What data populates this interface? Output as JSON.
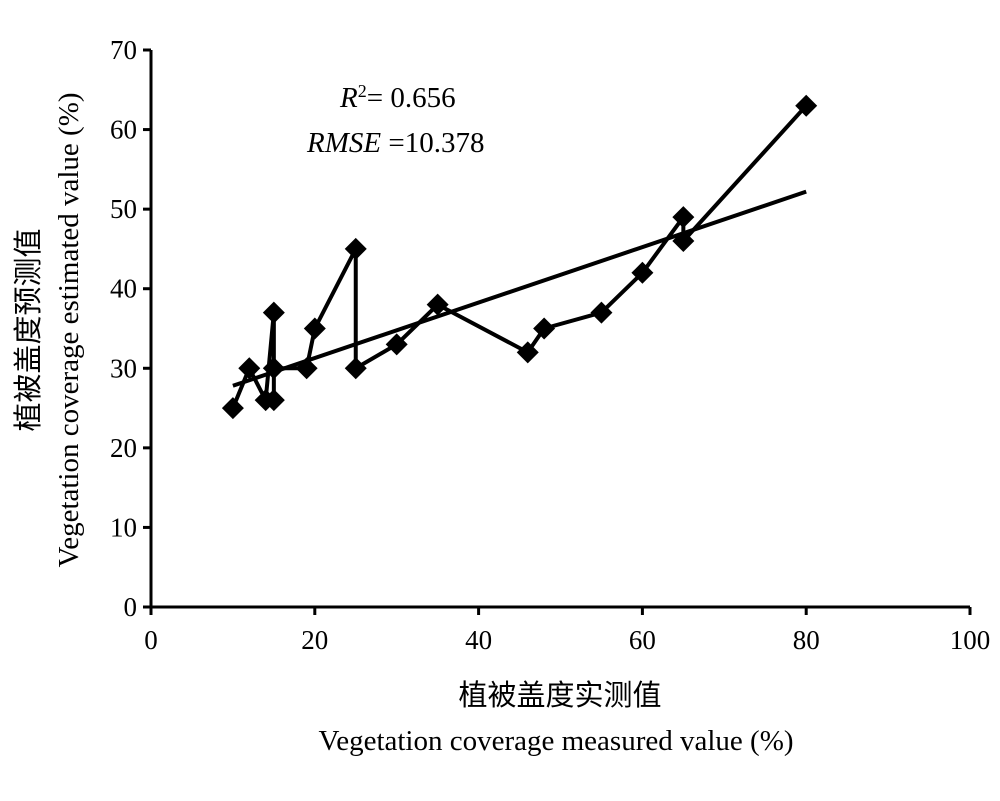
{
  "chart_data": {
    "type": "scatter",
    "xlabel_cn": "植被盖度实测值",
    "xlabel": "Vegetation coverage measured value (%)",
    "ylabel_cn": "植被盖度预测值",
    "ylabel": "Vegetation coverage estimated value (%)",
    "xlim": [
      0,
      100
    ],
    "ylim": [
      0,
      70
    ],
    "xticks": [
      0,
      20,
      40,
      60,
      80,
      100
    ],
    "yticks": [
      0,
      10,
      20,
      30,
      40,
      50,
      60,
      70
    ],
    "grid": false,
    "annotations": {
      "r2_symbol": "R",
      "r2_sup": "2",
      "r2_value": "= 0.656",
      "rmse_symbol": "RMSE",
      "rmse_value": " =10.378"
    },
    "series": [
      {
        "marker": "diamond",
        "connected": true,
        "points": [
          {
            "x": 10,
            "y": 25
          },
          {
            "x": 12,
            "y": 30
          },
          {
            "x": 14,
            "y": 26
          },
          {
            "x": 15,
            "y": 37
          },
          {
            "x": 15,
            "y": 26
          },
          {
            "x": 15,
            "y": 30
          },
          {
            "x": 19,
            "y": 30
          },
          {
            "x": 20,
            "y": 35
          },
          {
            "x": 25,
            "y": 45
          },
          {
            "x": 25,
            "y": 30
          },
          {
            "x": 30,
            "y": 33
          },
          {
            "x": 35,
            "y": 38
          },
          {
            "x": 46,
            "y": 32
          },
          {
            "x": 48,
            "y": 35
          },
          {
            "x": 55,
            "y": 37
          },
          {
            "x": 60,
            "y": 42
          },
          {
            "x": 65,
            "y": 49
          },
          {
            "x": 65,
            "y": 46
          },
          {
            "x": 80,
            "y": 63
          }
        ]
      }
    ],
    "trendline": {
      "x": [
        10,
        80
      ],
      "y": [
        27.8,
        52.2
      ]
    }
  }
}
